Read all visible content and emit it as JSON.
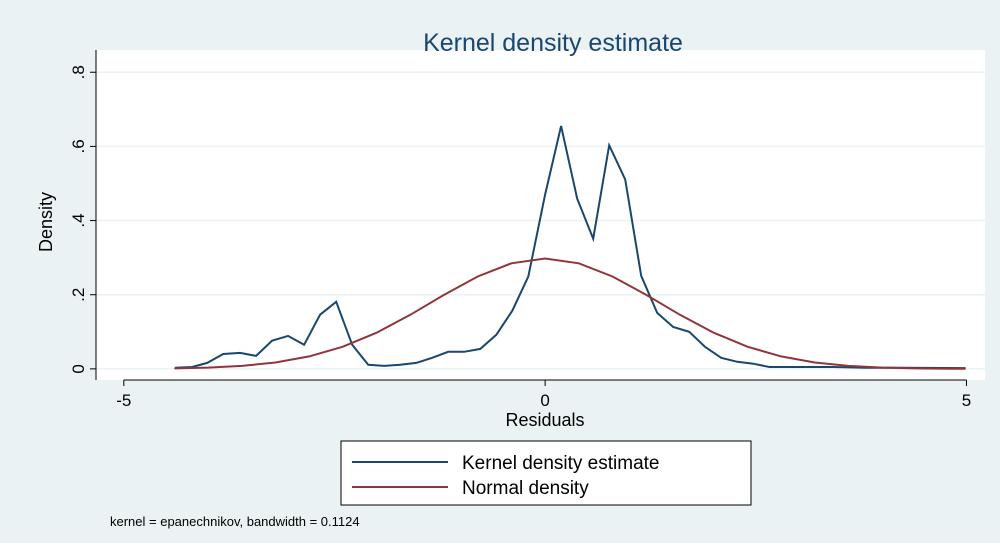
{
  "chart_data": {
    "type": "line",
    "title": "Kernel density estimate",
    "xlabel": "Residuals",
    "ylabel": "Density",
    "note": "kernel = epanechnikov, bandwidth = 0.1124",
    "xlim": [
      -5.33,
      5.22
    ],
    "ylim": [
      -0.03,
      0.86
    ],
    "xticks": [
      -5,
      0,
      5
    ],
    "yticks": [
      0,
      {
        "value": 0.2,
        "label": ".2"
      },
      {
        "value": 0.4,
        "label": ".4"
      },
      {
        "value": 0.6,
        "label": ".6"
      },
      {
        "value": 0.8,
        "label": ".8"
      }
    ],
    "grid": true,
    "legend": "bottom",
    "series": [
      {
        "name": "Kernel density estimate",
        "color": "#1a476f",
        "x": [
          -4.39,
          -4.19,
          -4.01,
          -3.82,
          -3.62,
          -3.43,
          -3.24,
          -3.05,
          -2.86,
          -2.67,
          -2.48,
          -2.29,
          -2.1,
          -1.91,
          -1.72,
          -1.53,
          -1.34,
          -1.15,
          -0.96,
          -0.77,
          -0.58,
          -0.39,
          -0.2,
          0,
          0.19,
          0.38,
          0.57,
          0.76,
          0.95,
          1.14,
          1.33,
          1.52,
          1.71,
          1.9,
          2.09,
          2.28,
          2.47,
          2.66,
          2.85,
          3.42,
          3.8,
          4.21,
          4.99
        ],
        "values": [
          0.003,
          0.005,
          0.016,
          0.04,
          0.043,
          0.035,
          0.076,
          0.089,
          0.065,
          0.146,
          0.181,
          0.065,
          0.011,
          0.008,
          0.011,
          0.016,
          0.03,
          0.046,
          0.046,
          0.054,
          0.092,
          0.157,
          0.249,
          0.47,
          0.655,
          0.459,
          0.351,
          0.603,
          0.511,
          0.251,
          0.151,
          0.113,
          0.1,
          0.059,
          0.03,
          0.019,
          0.014,
          0.005,
          0.005,
          0.005,
          0.003,
          0.003,
          0.002
        ]
      },
      {
        "name": "Normal density",
        "color": "#90353b",
        "x": [
          -4.4,
          -4.0,
          -3.6,
          -3.2,
          -2.8,
          -2.4,
          -2.0,
          -1.6,
          -1.2,
          -0.8,
          -0.4,
          0,
          0.4,
          0.8,
          1.2,
          1.6,
          2.0,
          2.4,
          2.8,
          3.2,
          3.6,
          4.0,
          4.4,
          4.8,
          4.99
        ],
        "values": [
          0.0014,
          0.0035,
          0.0081,
          0.0172,
          0.0336,
          0.0599,
          0.0977,
          0.1459,
          0.1994,
          0.2491,
          0.2847,
          0.2977,
          0.2847,
          0.2491,
          0.1994,
          0.1459,
          0.0977,
          0.0599,
          0.0336,
          0.0172,
          0.0081,
          0.0035,
          0.0014,
          0.0005,
          0.0003
        ]
      }
    ]
  }
}
